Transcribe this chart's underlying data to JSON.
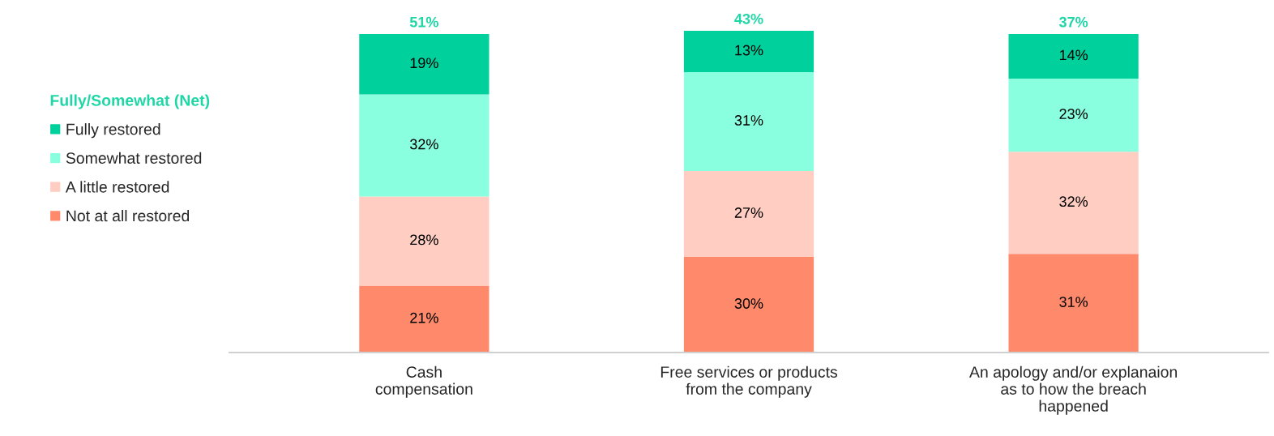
{
  "chart_data": {
    "type": "bar",
    "stacked": true,
    "categories": [
      "Cash\ncompensation",
      "Free services or products\nfrom the company",
      "An apology and/or explanaion\nas to how the breach\nhappened"
    ],
    "series": [
      {
        "name": "Not at all restored",
        "color": "#ff8a6b",
        "values": [
          21,
          30,
          31
        ],
        "value_labels": [
          "21%",
          "30%",
          "31%"
        ]
      },
      {
        "name": "A little restored",
        "color": "#ffcdc2",
        "values": [
          28,
          27,
          32
        ],
        "value_labels": [
          "28%",
          "27%",
          "32%"
        ]
      },
      {
        "name": "Somewhat restored",
        "color": "#8affe0",
        "values": [
          32,
          31,
          23
        ],
        "value_labels": [
          "32%",
          "31%",
          "23%"
        ]
      },
      {
        "name": "Fully restored",
        "color": "#00d09c",
        "values": [
          19,
          13,
          14
        ],
        "value_labels": [
          "19%",
          "13%",
          "14%"
        ]
      }
    ],
    "annotations": [
      {
        "text": "51%",
        "x": "Cash\ncompensation",
        "y": 100
      },
      {
        "text": "43%",
        "x": "Free services or products\nfrom the company",
        "y": 101
      },
      {
        "text": "37%",
        "x": "An apology and/or explanaion\nas to how the breach\nhappened",
        "y": 100
      }
    ],
    "legend_title": "Fully/Somewhat (Net)",
    "legend": "left",
    "grid": false
  }
}
